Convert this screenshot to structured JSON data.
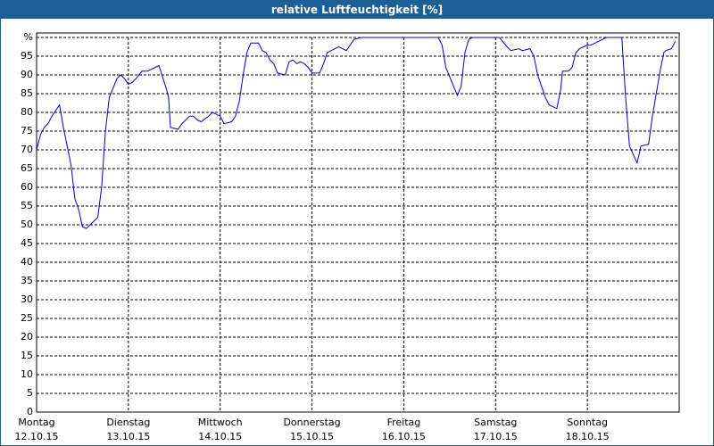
{
  "chart_data": {
    "type": "line",
    "title": "relative Luftfeuchtigkeit [%]",
    "xlim": [
      0,
      168
    ],
    "xticks": [
      {
        "value": 0,
        "label": "Montag\n12.10.15"
      },
      {
        "value": 24,
        "label": "Dienstag\n13.10.15"
      },
      {
        "value": 48,
        "label": "Mittwoch\n14.10.15"
      },
      {
        "value": 72,
        "label": "Donnerstag\n15.10.15"
      },
      {
        "value": 96,
        "label": "Freitag\n16.10.15"
      },
      {
        "value": 120,
        "label": "Samstag\n17.10.15"
      },
      {
        "value": 144,
        "label": "Sonntag\n18.10.15"
      }
    ],
    "ylim": [
      0,
      100
    ],
    "yticks": [
      0,
      5,
      10,
      15,
      20,
      25,
      30,
      35,
      40,
      45,
      50,
      55,
      60,
      65,
      70,
      75,
      80,
      85,
      90,
      95,
      {
        "value": 100,
        "label": "%"
      }
    ],
    "grid": true,
    "series": [
      {
        "color": "#0000cc",
        "x": [
          0,
          1,
          2,
          3,
          4,
          6,
          7,
          9,
          10,
          11,
          12,
          13,
          14,
          16,
          17,
          18,
          19,
          21,
          22,
          23,
          24,
          25,
          26,
          27.5,
          29,
          31,
          32,
          34,
          34.5,
          35,
          37,
          38,
          40,
          41,
          42,
          43,
          45,
          46,
          48,
          49,
          51,
          52,
          53,
          54,
          55,
          56,
          58,
          59,
          60,
          61,
          62,
          63,
          65,
          66,
          67,
          68,
          69,
          70,
          71,
          72,
          74,
          75,
          76,
          78,
          79,
          81,
          82,
          83,
          85,
          89,
          93,
          98,
          105,
          106,
          107,
          109,
          110,
          111,
          112,
          113,
          114,
          119,
          121,
          123,
          124,
          126,
          127,
          129,
          130,
          131,
          133,
          134,
          136,
          137,
          137.5,
          139,
          140,
          141,
          142,
          144,
          145,
          147,
          149,
          153,
          154,
          155,
          157,
          158,
          160,
          161,
          163,
          164,
          164.5,
          166,
          167
        ],
        "values": [
          70,
          74,
          76,
          77,
          79,
          82,
          76,
          66,
          57,
          54,
          49.5,
          49,
          50,
          52,
          60,
          75,
          84,
          89,
          90,
          89,
          87.5,
          88,
          89,
          91,
          91,
          92,
          92.5,
          86,
          84,
          76,
          75.5,
          77,
          79,
          79,
          78,
          77.5,
          79,
          80,
          79,
          77,
          77.5,
          79,
          83,
          90,
          96,
          98.5,
          98.5,
          96.5,
          96,
          94,
          93,
          90.5,
          90,
          93.5,
          94,
          93,
          93.5,
          93,
          92,
          90.5,
          90.5,
          93,
          96,
          97,
          97.5,
          96.5,
          98,
          99.5,
          100,
          100,
          100,
          100,
          100,
          98,
          92,
          87,
          84.5,
          87,
          96,
          99.5,
          100,
          100,
          100,
          97.5,
          96.5,
          97,
          96.5,
          97,
          95,
          90,
          84,
          82,
          81,
          86,
          91,
          91,
          92,
          96,
          97,
          98,
          98,
          99,
          100,
          100,
          84,
          71,
          66.5,
          71,
          71.5,
          79,
          91,
          96,
          96.5,
          97,
          99
        ]
      }
    ]
  }
}
